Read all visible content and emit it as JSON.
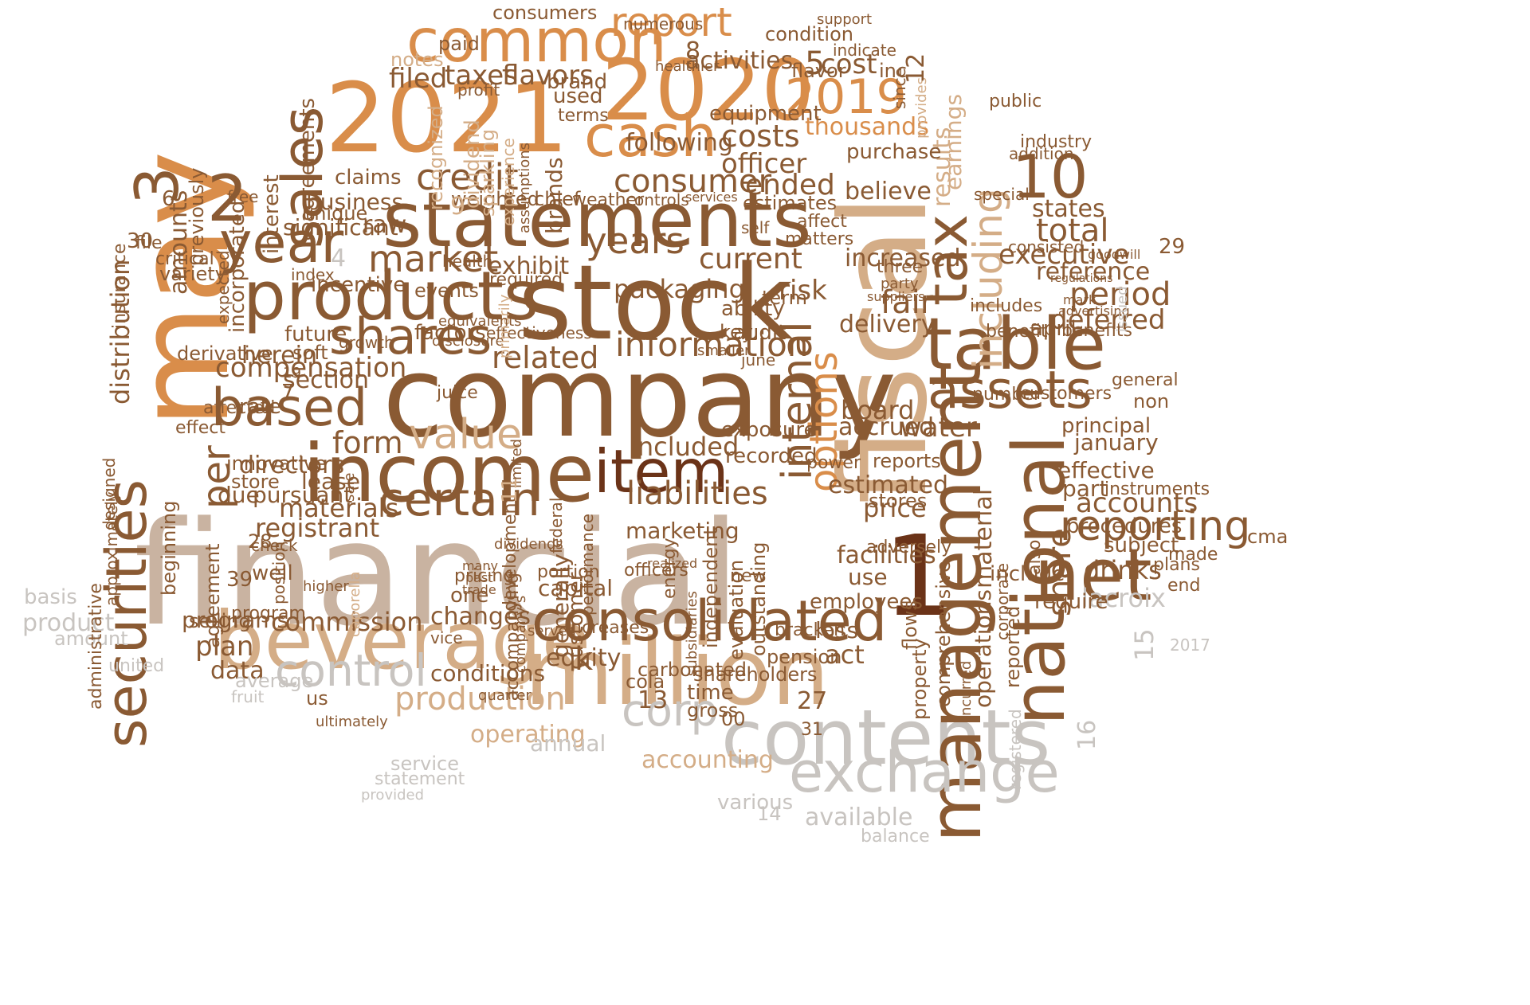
{
  "palette": {
    "dark": "#6b3318",
    "brown": "#8a5a33",
    "mid": "#b07b4b",
    "orange": "#d98d4a",
    "tan": "#d4ad87",
    "beige": "#c9b3a1",
    "grey": "#c8c4c0",
    "light": "#e2dcd6"
  },
  "words": {
    "financial": "financial",
    "company": "company",
    "may": "may",
    "fiscal": "fiscal",
    "stock": "stock",
    "statements": "statements",
    "y2021": "2021",
    "y2020": "2020",
    "million": "million",
    "beverage": "beverage",
    "contents": "contents",
    "income": "income",
    "national": "national",
    "management": "management",
    "table": "table",
    "products": "products",
    "consolidated": "consolidated",
    "exchange": "exchange",
    "common": "common",
    "sales": "sales",
    "item": "item",
    "cash": "cash",
    "year": "year",
    "securities": "securities",
    "assets": "assets",
    "net": "net",
    "shares": "shares",
    "based": "based",
    "tax": "tax",
    "report": "report",
    "y2019": "2019",
    "certain": "certain",
    "information": "information",
    "value": "value",
    "control": "control",
    "corp": "corp",
    "internal": "internal",
    "including": "including",
    "options": "options",
    "reporting": "reporting",
    "market": "market",
    "years": "years",
    "credit": "credit",
    "liabilities": "liabilities",
    "production": "production",
    "n1": "1",
    "n2": "2",
    "n3": "3",
    "n10": "10",
    "costs": "costs",
    "consumer": "consumer",
    "current": "current",
    "executive": "executive",
    "compensation": "compensation",
    "commission": "commission",
    "materials": "materials",
    "registrant": "registrant",
    "form": "form",
    "per": "per",
    "distribution": "distribution",
    "material": "material",
    "operations": "operations",
    "share": "share",
    "accounts": "accounts",
    "lacroix": "lacroix",
    "drinks": "drinks",
    "total": "total",
    "states": "states",
    "period": "period",
    "reference": "reference",
    "deferred": "deferred",
    "earnings": "earnings",
    "results": "results",
    "thousands": "thousands",
    "officer": "officer",
    "ended": "ended",
    "believe": "believe",
    "purchase": "purchase",
    "increased": "increased",
    "delivery": "delivery",
    "risk": "risk",
    "fair": "fair",
    "board": "board",
    "accrued": "accrued",
    "water": "water",
    "estimated": "estimated",
    "price": "price",
    "accounting": "accounting",
    "available": "available",
    "operating": "operating",
    "annual": "annual",
    "conditions": "conditions",
    "changes": "changes",
    "equity": "equity",
    "plan": "plan",
    "data": "data",
    "programs": "programs",
    "average": "average",
    "united": "united",
    "product": "product",
    "basis": "basis",
    "amount": "amount",
    "directors": "directors",
    "lease": "lease",
    "pursuant": "pursuant",
    "due": "due",
    "section": "section",
    "rate": "rate",
    "herein": "herein",
    "derivative": "derivative",
    "future": "future",
    "audit": "audit",
    "packaging": "packaging",
    "exhibit": "exhibit",
    "related": "related",
    "factors": "factors",
    "events": "events",
    "incentive": "incentive",
    "raw": "raw",
    "significant": "significant",
    "business": "business",
    "weighted": "weighted",
    "chief": "chief",
    "brands": "brands",
    "customer": "customer",
    "generally": "generally",
    "included": "included",
    "marketing": "marketing",
    "exposure": "exposure",
    "recorded": "recorded",
    "capital": "capital",
    "use": "use",
    "facilities": "facilities",
    "adversely": "adversely",
    "employees": "employees",
    "include": "include",
    "also": "also",
    "act": "act",
    "pension": "pension",
    "shareholders": "shareholders",
    "time": "time",
    "gross": "gross",
    "cola": "cola",
    "carbonated": "carbonated",
    "increases": "increases",
    "k": "k",
    "one": "one",
    "well": "well",
    "agreement": "agreement",
    "selling": "selling",
    "taxes": "taxes",
    "flavors": "flavors",
    "filed": "filed",
    "consumers": "consumers",
    "activities": "activities",
    "cost": "cost",
    "following": "following",
    "equipment": "equipment",
    "condition": "condition",
    "notes": "notes",
    "paid": "paid",
    "amounts": "amounts",
    "incorporated": "incorporated",
    "previously": "previously",
    "interest": "interest",
    "agreements": "agreements",
    "statements_small": "statements",
    "recognized": "recognized",
    "dividend": "dividend",
    "sparkling": "sparkling",
    "experience": "experience",
    "flavor": "flavor",
    "inc": "inc",
    "public": "public",
    "industry": "industry",
    "addition": "addition",
    "consisted": "consisted",
    "special": "special",
    "april": "april",
    "includes": "includes",
    "benefits": "benefits",
    "benefit": "benefit",
    "general": "general",
    "customers": "customers",
    "number": "number",
    "non": "non",
    "principal": "principal",
    "january": "january",
    "effective": "effective",
    "part": "part",
    "procedures": "procedures",
    "subject": "subject",
    "require": "require",
    "instruments": "instruments",
    "plans": "plans",
    "end": "end",
    "made": "made",
    "cma": "cma",
    "reports": "reports",
    "stores": "stores",
    "power": "power",
    "term": "term",
    "ability": "ability",
    "key": "key",
    "june": "june",
    "smaller": "smaller",
    "outstanding": "outstanding",
    "independent": "independent",
    "evaluation": "evaluation",
    "energy": "energy",
    "subsidiaries": "subsidiaries",
    "loss": "loss",
    "new": "new",
    "bracken": "bracken",
    "flows": "flows",
    "comprehensive": "comprehensive",
    "property": "property",
    "reported": "reported",
    "corporate": "corporate",
    "registered": "registered",
    "incurred": "incurred",
    "innovative": "innovative",
    "store": "store",
    "beginning": "beginning",
    "approximately": "approximately",
    "administrative": "administrative",
    "designed": "designed",
    "effect": "effect",
    "affected": "affected",
    "unique": "unique",
    "claims": "claims",
    "free": "free",
    "variety": "variety",
    "critical": "critical",
    "insurance": "insurance",
    "expected": "expected",
    "file": "file",
    "soft": "soft",
    "juice": "juice",
    "growth": "growth",
    "disclosure": "disclosure",
    "effectiveness": "effectiveness",
    "primarily": "primarily",
    "assumptions": "assumptions",
    "health": "health",
    "required": "required",
    "equivalents": "equivalents",
    "development": "development",
    "federal": "federal",
    "limited": "limited",
    "performance": "performance",
    "accompanying": "accompanying",
    "pricing": "pricing",
    "portion": "portion",
    "vice": "vice",
    "served": "served",
    "dividends": "dividends",
    "companys": "company's",
    "officers": "officers",
    "estimates": "estimates",
    "controls": "controls",
    "weather": "weather",
    "terms": "terms",
    "used": "used",
    "brand": "brand",
    "profit": "profit",
    "affect": "affect",
    "matters": "matters",
    "self": "self",
    "check": "check",
    "program": "program",
    "us": "us",
    "ultimately": "ultimately",
    "fruit": "fruit",
    "position": "position",
    "higher": "higher",
    "services": "services",
    "many": "many",
    "past": "past",
    "trade": "trade",
    "realized": "realized",
    "numerous": "numerous",
    "support": "support",
    "indicate": "indicate",
    "healthier": "healthier",
    "since": "since",
    "provides": "provides",
    "three": "three",
    "party": "party",
    "suppliers": "suppliers",
    "goodwill": "goodwill",
    "mark": "mark",
    "advertising": "advertising",
    "regulations": "regulations",
    "issued": "issued",
    "sale": "sale",
    "caporella": "caporella",
    "index": "index",
    "quarter": "quarter",
    "statement": "statement",
    "service": "service",
    "provided": "provided",
    "various": "various",
    "balance": "balance",
    "n5": "5",
    "n6": "6",
    "n7": "7",
    "n8": "8",
    "n9": "9",
    "n11": "11",
    "n12": "12",
    "n13": "13",
    "n14": "14",
    "n15": "15",
    "n16": "16",
    "n19": "19",
    "n27": "27",
    "n28": "28",
    "n29": "29",
    "n30": "30",
    "n31": "31",
    "n39": "39",
    "n00": "00",
    "n2017": "2017",
    "n4": "4"
  }
}
